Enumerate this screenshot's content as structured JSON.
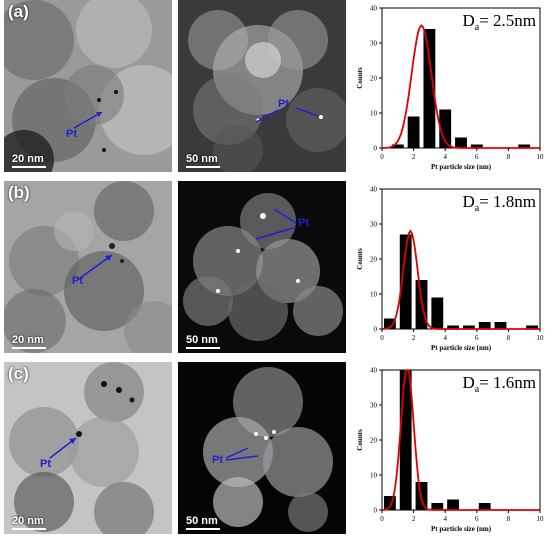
{
  "panels": [
    {
      "tag": "(a)",
      "tem_scale": "20 nm",
      "stem_scale": "50 nm",
      "pt_label": "Pt",
      "stem_pt_label": "Pt",
      "d_label": "D",
      "d_sub": "a",
      "d_value": "= 2.5nm"
    },
    {
      "tag": "(b)",
      "tem_scale": "20 nm",
      "stem_scale": "50 nm",
      "pt_label": "Pt",
      "stem_pt_label": "Pt",
      "d_label": "D",
      "d_sub": "a",
      "d_value": "= 1.8nm"
    },
    {
      "tag": "(c)",
      "tem_scale": "20 nm",
      "stem_scale": "50 nm",
      "pt_label": "Pt",
      "stem_pt_label": "Pt",
      "d_label": "D",
      "d_sub": "a",
      "d_value": "= 1.6nm"
    }
  ],
  "chart_data": [
    {
      "type": "bar",
      "categories": [
        1,
        2,
        3,
        4,
        5,
        6,
        7,
        8,
        9
      ],
      "values": [
        1,
        9,
        34,
        11,
        3,
        1,
        0,
        0,
        1
      ],
      "fit_peak": [
        2.5,
        35
      ],
      "xlabel": "Pt particle size (nm)",
      "ylabel": "Counts",
      "xlim": [
        0,
        10
      ],
      "ylim": [
        0,
        40
      ],
      "xticks": [
        "0",
        "2",
        "4",
        "6",
        "8",
        "10"
      ],
      "yticks": [
        "0",
        "10",
        "20",
        "30",
        "40"
      ],
      "bar_color": "#000000",
      "fit_color": "#e00000"
    },
    {
      "type": "bar",
      "categories": [
        0.5,
        1.5,
        2.5,
        3.5,
        4.5,
        5.5,
        6.5,
        7.5,
        9.5
      ],
      "values": [
        3,
        27,
        14,
        9,
        1,
        1,
        2,
        2,
        1
      ],
      "fit_peak": [
        1.8,
        28
      ],
      "xlabel": "Pt particle size (nm)",
      "ylabel": "Counts",
      "xlim": [
        0,
        10
      ],
      "ylim": [
        0,
        40
      ],
      "xticks": [
        "0",
        "2",
        "4",
        "6",
        "8",
        "10"
      ],
      "yticks": [
        "0",
        "10",
        "20",
        "30",
        "40"
      ],
      "bar_color": "#000000",
      "fit_color": "#e00000"
    },
    {
      "type": "bar",
      "categories": [
        0.5,
        1.5,
        2.5,
        3.5,
        4.5,
        6.5
      ],
      "values": [
        4,
        40,
        8,
        2,
        3,
        2
      ],
      "fit_peak": [
        1.6,
        41
      ],
      "xlabel": "Pt particle size (nm)",
      "ylabel": "Counts",
      "xlim": [
        0,
        10
      ],
      "ylim": [
        0,
        40
      ],
      "xticks": [
        "0",
        "2",
        "4",
        "6",
        "8",
        "10"
      ],
      "yticks": [
        "0",
        "10",
        "20",
        "30",
        "40"
      ],
      "bar_color": "#000000",
      "fit_color": "#e00000"
    }
  ]
}
